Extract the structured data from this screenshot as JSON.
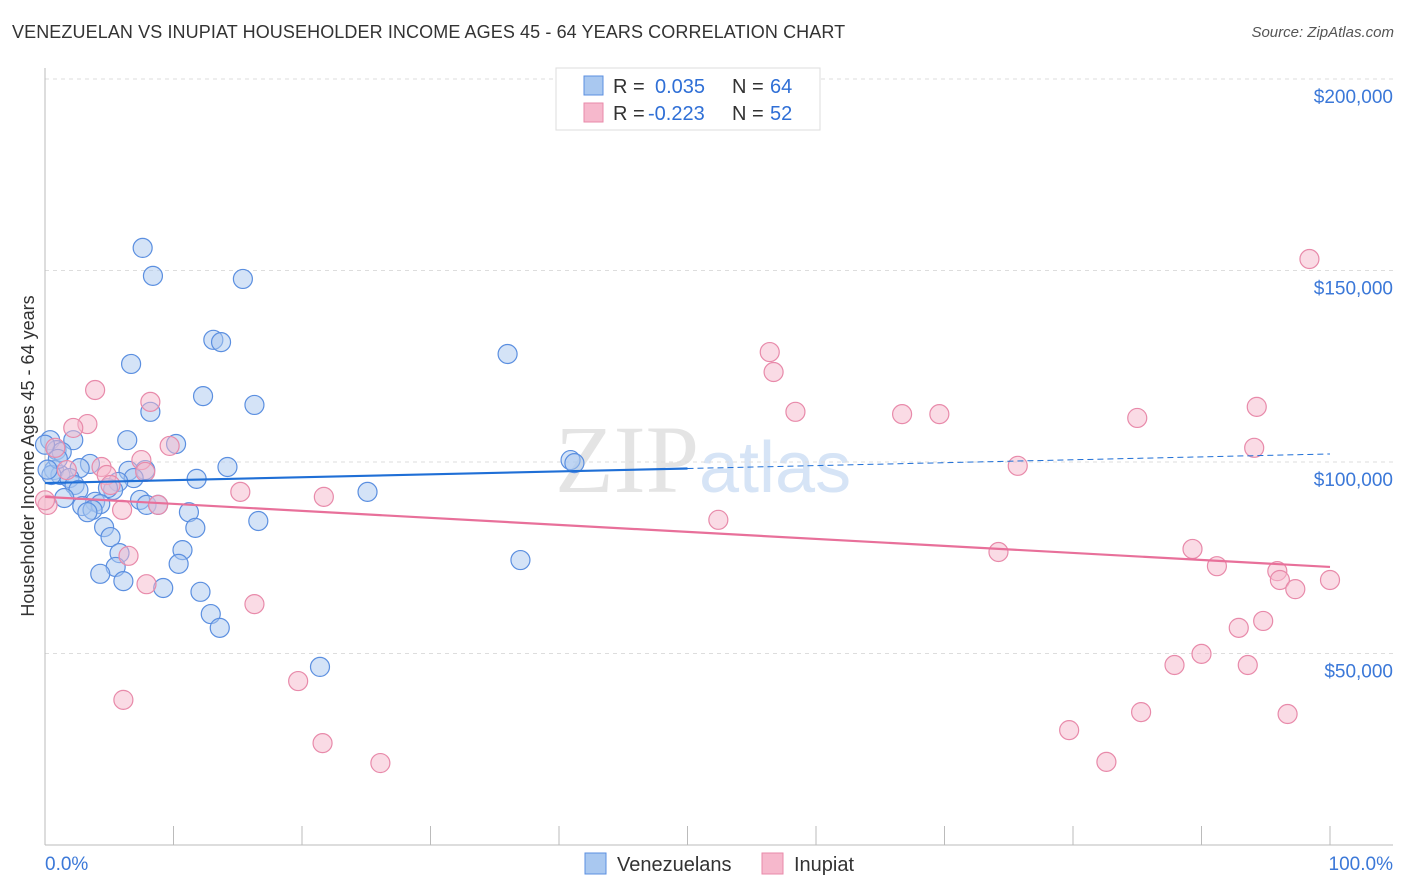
{
  "title": "VENEZUELAN VS INUPIAT HOUSEHOLDER INCOME AGES 45 - 64 YEARS CORRELATION CHART",
  "source": "Source: ZipAtlas.com",
  "watermark": "ZIPatlas",
  "colors": {
    "blue": "#5b8fe0",
    "blue_fill": "#a9c8f0",
    "blue_line": "#1f6fd6",
    "pink": "#e88aaa",
    "pink_fill": "#f6b8cc",
    "pink_line": "#e8709a",
    "tick": "#3b78d8"
  },
  "legend": {
    "r_label": "R =",
    "n_label": "N =",
    "entries": [
      {
        "r": "0.035",
        "n": "64"
      },
      {
        "r": "-0.223",
        "n": "52"
      }
    ]
  },
  "chart_data": {
    "type": "scatter",
    "title": "VENEZUELAN VS INUPIAT HOUSEHOLDER INCOME AGES 45 - 64 YEARS CORRELATION CHART",
    "xlabel": "",
    "ylabel": "Householder Income Ages 45 - 64 years",
    "xlim": [
      0,
      100
    ],
    "ylim": [
      0,
      210000
    ],
    "x_tick_labels": [
      "0.0%",
      "100.0%"
    ],
    "y_ticks": [
      50000,
      100000,
      150000,
      200000
    ],
    "y_tick_labels": [
      "$50,000",
      "$100,000",
      "$150,000",
      "$200,000"
    ],
    "grid": true,
    "legend_position": "top-center",
    "series": [
      {
        "name": "Venezuelans",
        "r": 0.035,
        "n": 64,
        "trend": [
          [
            0,
            94500
          ],
          [
            50,
            98400
          ],
          [
            100,
            102100
          ]
        ],
        "trend_solid_until": 50,
        "points": [
          [
            7.6,
            155.9
          ],
          [
            8.4,
            148.6
          ],
          [
            15.4,
            147.8
          ],
          [
            13.1,
            131.9
          ],
          [
            13.7,
            131.3
          ],
          [
            36.0,
            128.2
          ],
          [
            6.7,
            125.6
          ],
          [
            12.3,
            117.2
          ],
          [
            16.3,
            114.9
          ],
          [
            8.2,
            113.1
          ],
          [
            6.4,
            105.7
          ],
          [
            10.2,
            104.7
          ],
          [
            0.4,
            105.7
          ],
          [
            0.9,
            103.1
          ],
          [
            2.2,
            105.7
          ],
          [
            1.3,
            102.6
          ],
          [
            40.9,
            100.5
          ],
          [
            41.2,
            99.7
          ],
          [
            14.2,
            98.7
          ],
          [
            3.5,
            99.5
          ],
          [
            2.7,
            98.4
          ],
          [
            0.7,
            97.9
          ],
          [
            6.5,
            97.7
          ],
          [
            7.8,
            97.9
          ],
          [
            1.2,
            96.6
          ],
          [
            1.9,
            95.8
          ],
          [
            11.8,
            95.6
          ],
          [
            6.9,
            95.8
          ],
          [
            5.7,
            94.8
          ],
          [
            2.3,
            94.0
          ],
          [
            2.6,
            92.7
          ],
          [
            5.3,
            92.7
          ],
          [
            4.9,
            93.2
          ],
          [
            25.1,
            92.2
          ],
          [
            1.5,
            90.6
          ],
          [
            7.4,
            90.1
          ],
          [
            3.9,
            89.6
          ],
          [
            4.3,
            89.0
          ],
          [
            2.9,
            88.5
          ],
          [
            7.9,
            88.8
          ],
          [
            3.7,
            87.5
          ],
          [
            3.3,
            86.9
          ],
          [
            11.2,
            86.9
          ],
          [
            8.8,
            88.8
          ],
          [
            16.6,
            84.6
          ],
          [
            4.6,
            83.0
          ],
          [
            11.7,
            82.8
          ],
          [
            5.1,
            80.4
          ],
          [
            5.8,
            76.2
          ],
          [
            10.7,
            77.0
          ],
          [
            37.0,
            74.4
          ],
          [
            5.5,
            72.6
          ],
          [
            10.4,
            73.4
          ],
          [
            4.3,
            70.8
          ],
          [
            6.1,
            68.9
          ],
          [
            9.2,
            67.1
          ],
          [
            12.1,
            66.1
          ],
          [
            12.9,
            60.3
          ],
          [
            13.6,
            56.7
          ],
          [
            21.4,
            46.5
          ],
          [
            0.0,
            104.5
          ],
          [
            0.5,
            96.6
          ],
          [
            1.0,
            100.8
          ],
          [
            0.2,
            98.0
          ]
        ]
      },
      {
        "name": "Inupiat",
        "r": -0.223,
        "n": 52,
        "trend": [
          [
            0,
            90900
          ],
          [
            100,
            72600
          ]
        ],
        "trend_solid_until": 100,
        "points": [
          [
            98.4,
            153.0
          ],
          [
            56.4,
            128.7
          ],
          [
            56.7,
            123.5
          ],
          [
            3.9,
            118.8
          ],
          [
            8.2,
            115.7
          ],
          [
            58.4,
            113.1
          ],
          [
            66.7,
            112.5
          ],
          [
            69.6,
            112.5
          ],
          [
            85.0,
            111.5
          ],
          [
            94.3,
            114.4
          ],
          [
            3.3,
            109.9
          ],
          [
            2.2,
            108.9
          ],
          [
            9.7,
            104.2
          ],
          [
            0.8,
            103.7
          ],
          [
            94.1,
            103.7
          ],
          [
            7.5,
            100.5
          ],
          [
            4.4,
            98.7
          ],
          [
            1.7,
            97.9
          ],
          [
            75.7,
            99.0
          ],
          [
            7.8,
            97.4
          ],
          [
            4.8,
            96.6
          ],
          [
            5.1,
            94.0
          ],
          [
            15.2,
            92.2
          ],
          [
            21.7,
            90.9
          ],
          [
            8.8,
            88.8
          ],
          [
            0.2,
            88.8
          ],
          [
            6.0,
            87.5
          ],
          [
            52.4,
            84.9
          ],
          [
            74.2,
            76.5
          ],
          [
            89.3,
            77.3
          ],
          [
            6.5,
            75.5
          ],
          [
            91.2,
            72.8
          ],
          [
            95.9,
            71.5
          ],
          [
            96.1,
            69.2
          ],
          [
            100.0,
            69.2
          ],
          [
            97.3,
            66.8
          ],
          [
            7.9,
            68.1
          ],
          [
            94.8,
            58.5
          ],
          [
            92.9,
            56.7
          ],
          [
            16.3,
            62.9
          ],
          [
            90.0,
            49.9
          ],
          [
            87.9,
            47.0
          ],
          [
            93.6,
            47.0
          ],
          [
            19.7,
            42.8
          ],
          [
            6.1,
            37.9
          ],
          [
            85.3,
            34.7
          ],
          [
            96.7,
            34.2
          ],
          [
            79.7,
            30.0
          ],
          [
            21.6,
            26.6
          ],
          [
            82.6,
            21.7
          ],
          [
            26.1,
            21.4
          ],
          [
            0.0,
            90.0
          ]
        ]
      }
    ]
  }
}
